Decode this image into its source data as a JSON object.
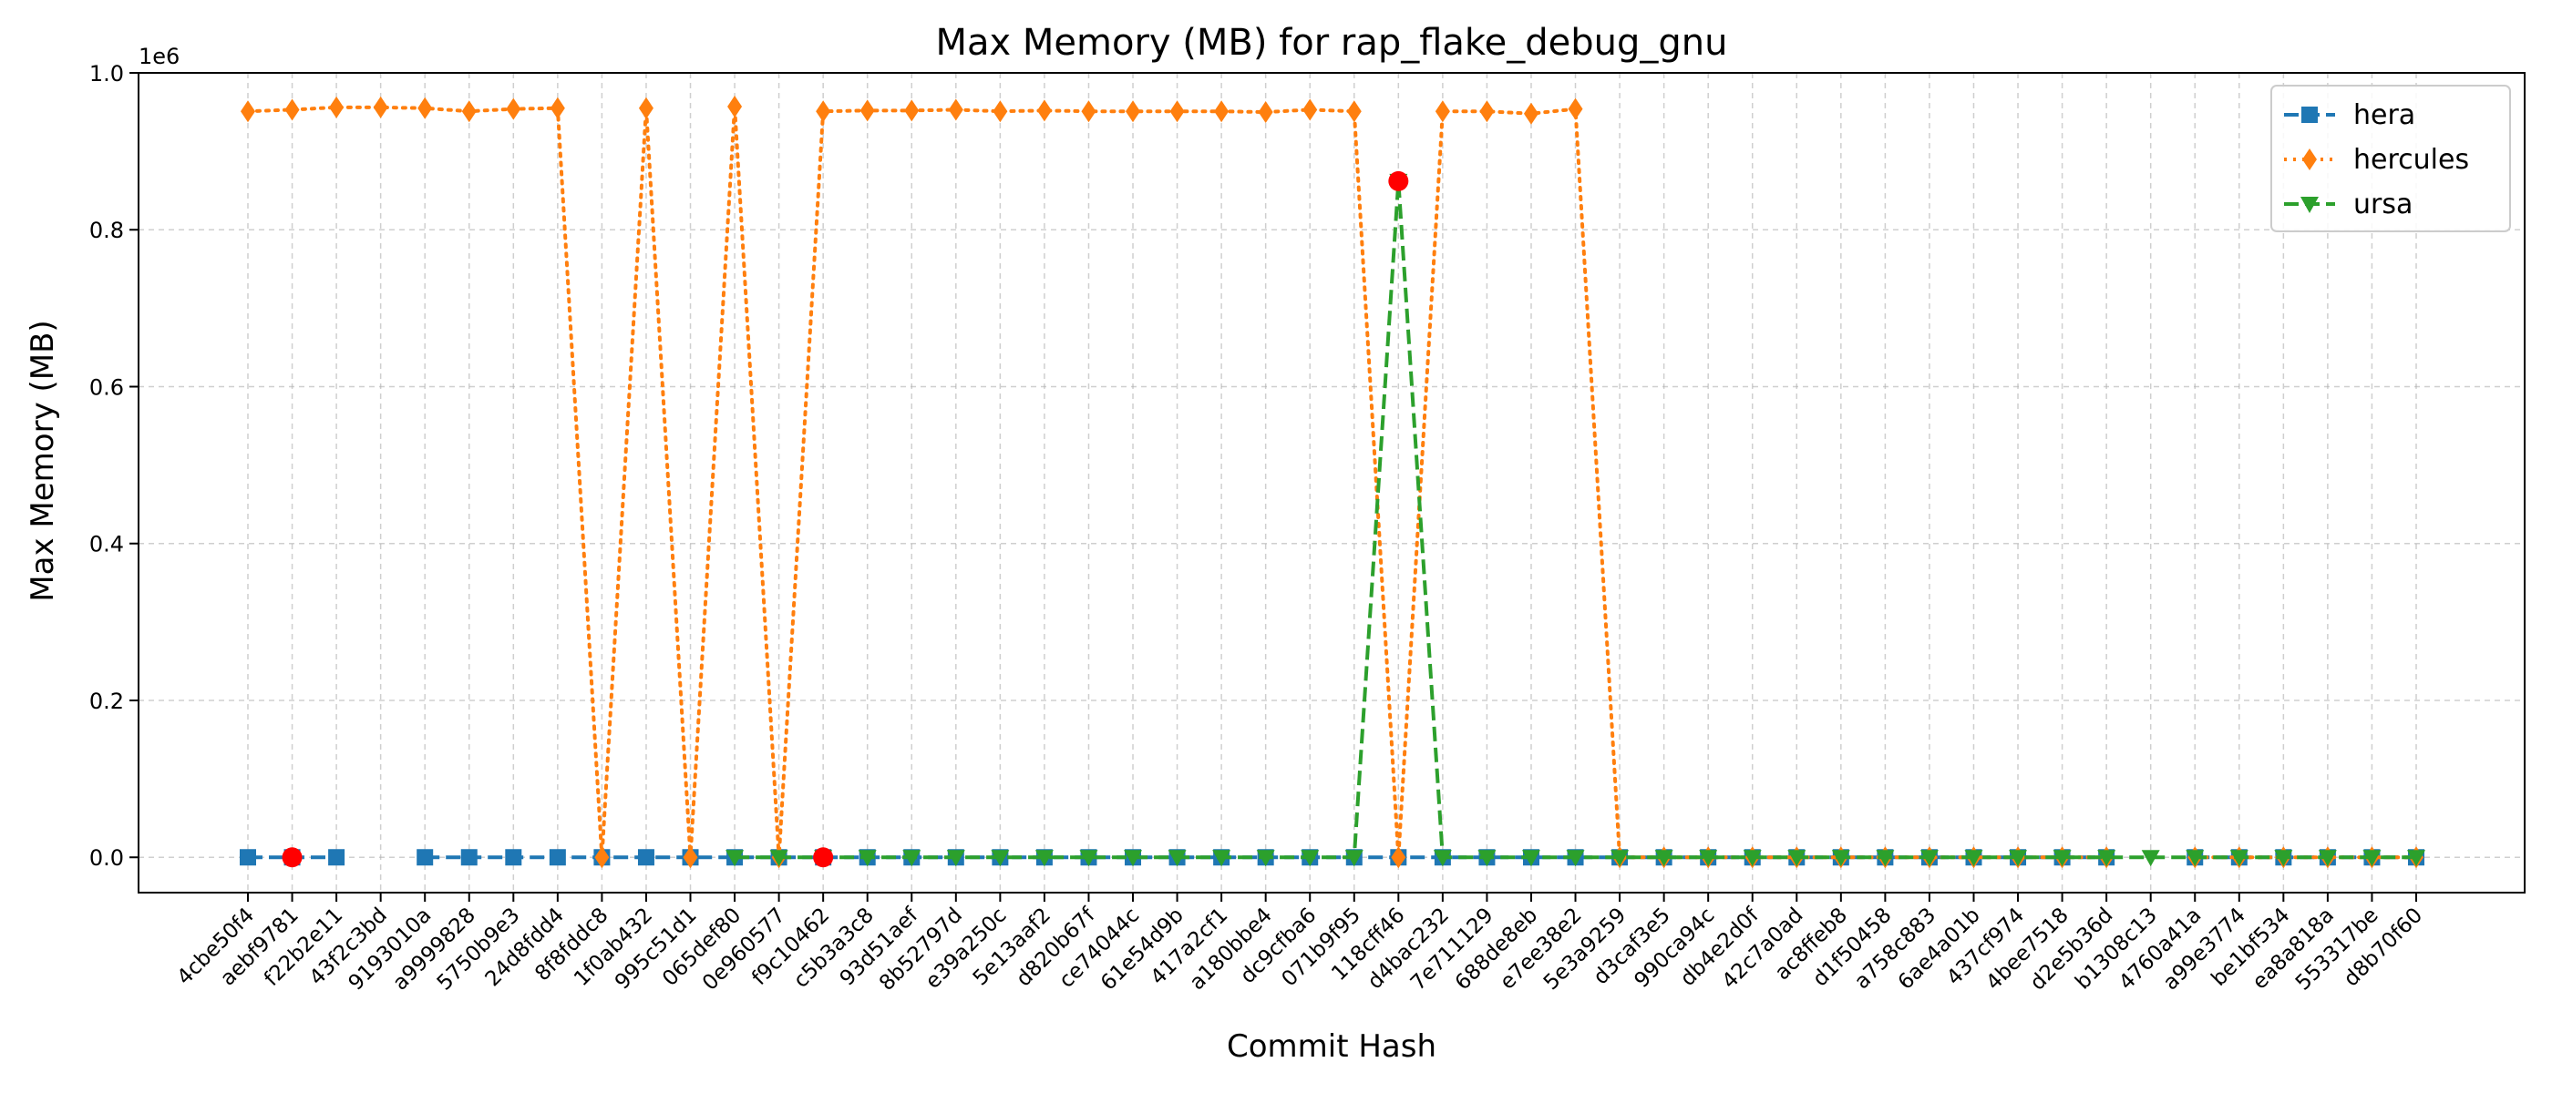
{
  "chart_data": {
    "type": "line",
    "title": "Max Memory (MB) for rap_flake_debug_gnu",
    "xlabel": "Commit Hash",
    "ylabel": "Max Memory (MB)",
    "y_offset_text": "1e6",
    "ylim": [
      -0.045,
      1.0
    ],
    "y_scale_factor": 1000000,
    "yticks": [
      0.0,
      0.2,
      0.4,
      0.6,
      0.8,
      1.0
    ],
    "ytick_labels": [
      "0.0",
      "0.2",
      "0.4",
      "0.6",
      "0.8",
      "1.0"
    ],
    "grid": true,
    "legend_position": "top-right",
    "categories": [
      "4cbe50f4",
      "aebf9781",
      "f22b2e11",
      "43f2c3bd",
      "9193010a",
      "a9999828",
      "5750b9e3",
      "24d8fdd4",
      "8f8fddc8",
      "1f0ab432",
      "995c51d1",
      "065def80",
      "0e960577",
      "f9c10462",
      "c5b3a3c8",
      "93d51aef",
      "8b52797d",
      "e39a250c",
      "5e13aaf2",
      "d820b67f",
      "ce74044c",
      "61e54d9b",
      "417a2cf1",
      "a180bbe4",
      "dc9cfba6",
      "071b9f95",
      "118cff46",
      "d4bac232",
      "7e711129",
      "688de8eb",
      "e7ee38e2",
      "5e3a9259",
      "d3caf3e5",
      "990ca94c",
      "db4e2d0f",
      "42c7a0ad",
      "ac8ffeb8",
      "d1f50458",
      "a758c883",
      "6ae4a01b",
      "437cf974",
      "4bee7518",
      "d2e5b36d",
      "b1308c13",
      "4760a41a",
      "a99e3774",
      "be1bf534",
      "ea8a818a",
      "553317be",
      "d8b70f60"
    ],
    "series": [
      {
        "name": "hera",
        "color": "#1f77b4",
        "marker": "square",
        "linestyle": "dashed",
        "values": [
          0.0,
          0.0,
          0.0,
          null,
          0.0,
          0.0,
          0.0,
          0.0,
          0.0,
          0.0,
          0.0,
          0.0,
          0.0,
          0.0,
          0.0,
          0.0,
          0.0,
          0.0,
          0.0,
          0.0,
          0.0,
          0.0,
          0.0,
          0.0,
          0.0,
          0.0,
          0.0,
          0.0,
          0.0,
          0.0,
          0.0,
          0.0,
          0.0,
          0.0,
          0.0,
          0.0,
          0.0,
          0.0,
          0.0,
          0.0,
          0.0,
          0.0,
          0.0,
          null,
          0.0,
          0.0,
          0.0,
          0.0,
          0.0,
          0.0
        ]
      },
      {
        "name": "hercules",
        "color": "#ff7f0e",
        "marker": "diamond",
        "linestyle": "dotted",
        "values": [
          0.951,
          0.953,
          0.956,
          0.956,
          0.955,
          0.951,
          0.954,
          0.955,
          0.0,
          0.955,
          0.0,
          0.957,
          0.0,
          0.951,
          0.952,
          0.952,
          0.953,
          0.951,
          0.952,
          0.951,
          0.951,
          0.951,
          0.951,
          0.95,
          0.953,
          0.951,
          0.0,
          0.951,
          0.951,
          0.948,
          0.954,
          0.0,
          0.0,
          0.0,
          0.0,
          0.0,
          0.0,
          0.0,
          0.0,
          0.0,
          0.0,
          0.0,
          0.0,
          null,
          0.0,
          0.0,
          0.0,
          0.0,
          0.0,
          0.0
        ]
      },
      {
        "name": "ursa",
        "color": "#2ca02c",
        "marker": "triangle-down",
        "linestyle": "dashed",
        "values": [
          null,
          null,
          null,
          null,
          null,
          null,
          null,
          null,
          null,
          null,
          null,
          0.0,
          0.0,
          0.0,
          0.0,
          0.0,
          0.0,
          0.0,
          0.0,
          0.0,
          0.0,
          0.0,
          0.0,
          0.0,
          0.0,
          0.0,
          0.862,
          0.0,
          0.0,
          0.0,
          0.0,
          0.0,
          0.0,
          0.0,
          0.0,
          0.0,
          0.0,
          0.0,
          0.0,
          0.0,
          0.0,
          0.0,
          0.0,
          0.0,
          0.0,
          0.0,
          0.0,
          0.0,
          0.0,
          0.0
        ]
      }
    ],
    "highlight_points": [
      {
        "category": "aebf9781",
        "value": 0.0,
        "color": "#ff0000"
      },
      {
        "category": "f9c10462",
        "value": 0.0,
        "color": "#ff0000"
      },
      {
        "category": "118cff46",
        "value": 0.862,
        "color": "#ff0000"
      }
    ]
  }
}
